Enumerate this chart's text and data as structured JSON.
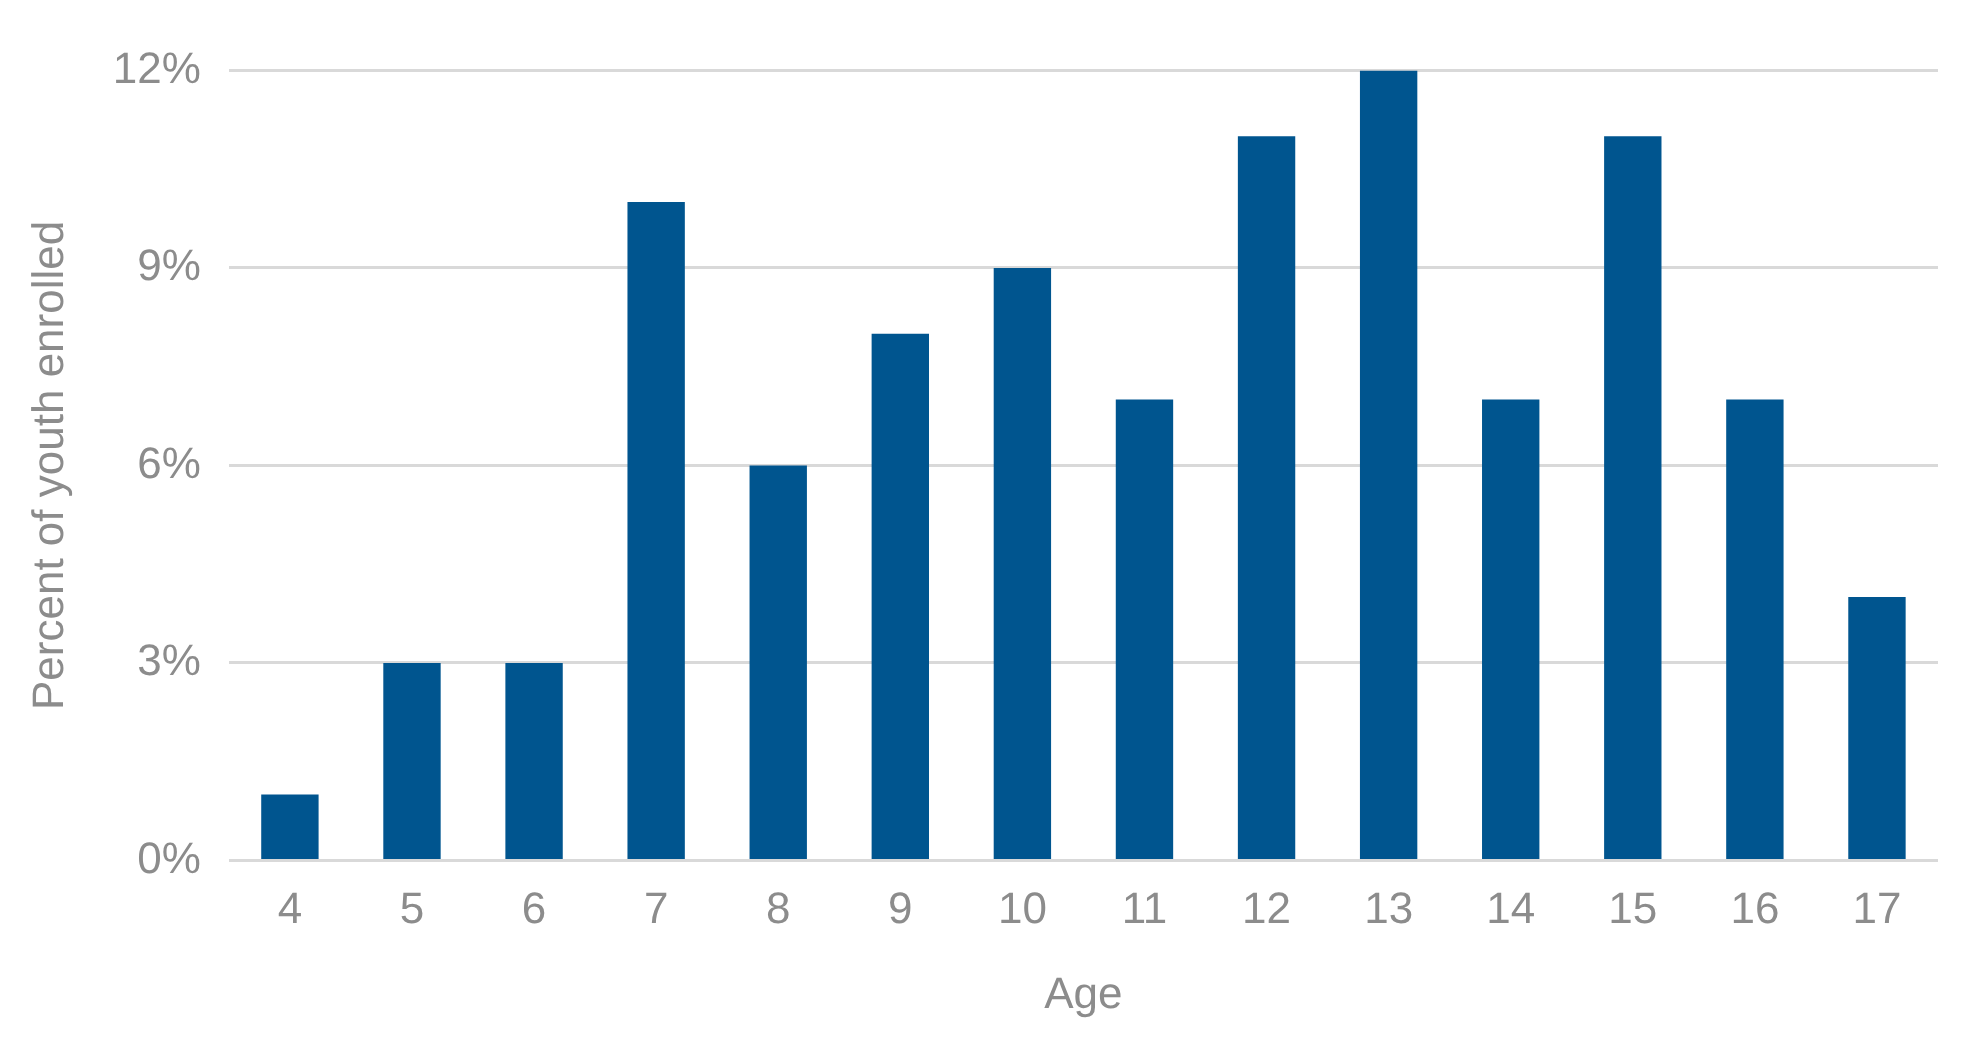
{
  "chart_data": {
    "type": "bar",
    "xlabel": "Age",
    "ylabel": "Percent of youth enrolled",
    "categories": [
      "4",
      "5",
      "6",
      "7",
      "8",
      "9",
      "10",
      "11",
      "12",
      "13",
      "14",
      "15",
      "16",
      "17"
    ],
    "values": [
      1,
      3,
      3,
      10,
      6,
      8,
      9,
      7,
      11,
      12,
      7,
      11,
      7,
      4
    ],
    "color": "#00558f",
    "ylim": [
      0,
      12
    ],
    "yticks": [
      {
        "value": 0,
        "label": "0%"
      },
      {
        "value": 3,
        "label": "3%"
      },
      {
        "value": 6,
        "label": "6%"
      },
      {
        "value": 9,
        "label": "9%"
      },
      {
        "value": 12,
        "label": "12%"
      }
    ],
    "grid": "y",
    "legend": false
  }
}
